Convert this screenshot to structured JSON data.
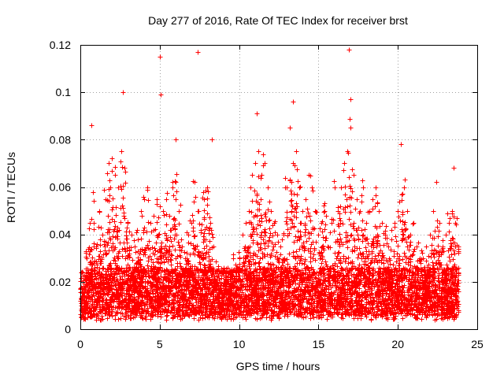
{
  "chart_data": {
    "type": "scatter",
    "title": "Day 277 of 2016, Rate Of TEC Index for receiver brst",
    "xlabel": "GPS time / hours",
    "ylabel": "ROTI / TECUs",
    "xlim": [
      0,
      25
    ],
    "ylim": [
      0,
      0.12
    ],
    "xticks": [
      0,
      5,
      10,
      15,
      20,
      25
    ],
    "xtick_labels": [
      "0",
      "5",
      "10",
      "15",
      "20",
      "25"
    ],
    "yticks": [
      0,
      0.02,
      0.04,
      0.06,
      0.08,
      0.1,
      0.12
    ],
    "ytick_labels": [
      "0",
      "0.02",
      "0.04",
      "0.06",
      "0.08",
      "0.1",
      "0.12"
    ],
    "grid": true,
    "marker": "+",
    "series": [
      {
        "name": "ROTI",
        "color": "#ff0000",
        "x": [
          0.0,
          0.2,
          0.4,
          0.6,
          0.8,
          1.0,
          1.2,
          1.4,
          1.6,
          1.8,
          2.0,
          2.2,
          2.4,
          2.6,
          2.8,
          3.0,
          3.2,
          3.4,
          3.6,
          3.8,
          4.0,
          4.2,
          4.4,
          4.6,
          4.8,
          5.0,
          5.2,
          5.4,
          5.6,
          5.8,
          6.0,
          6.2,
          6.4,
          6.6,
          6.8,
          7.0,
          7.2,
          7.4,
          7.6,
          7.8,
          8.0,
          8.2,
          8.4,
          8.6,
          8.8,
          9.0,
          9.2,
          9.4,
          9.6,
          9.8,
          10.0,
          10.2,
          10.4,
          10.6,
          10.8,
          11.0,
          11.2,
          11.4,
          11.6,
          11.8,
          12.0,
          12.2,
          12.4,
          12.6,
          12.8,
          13.0,
          13.2,
          13.4,
          13.6,
          13.8,
          14.0,
          14.2,
          14.4,
          14.6,
          14.8,
          15.0,
          15.2,
          15.4,
          15.6,
          15.8,
          16.0,
          16.2,
          16.4,
          16.6,
          16.8,
          17.0,
          17.2,
          17.4,
          17.6,
          17.8,
          18.0,
          18.2,
          18.4,
          18.6,
          18.8,
          19.0,
          19.2,
          19.4,
          19.6,
          19.8,
          20.0,
          20.2,
          20.4,
          20.6,
          20.8,
          21.0,
          21.2,
          21.4,
          21.6,
          21.8,
          22.0,
          22.2,
          22.4,
          22.6,
          22.8,
          23.0,
          23.2,
          23.4,
          23.6,
          23.8,
          0.7,
          2.7,
          5.0,
          5.05,
          7.4,
          11.1,
          13.4,
          16.9,
          17.0,
          20.2,
          6.0,
          8.3,
          23.5
        ],
        "y": [
          0.012,
          0.02,
          0.03,
          0.045,
          0.058,
          0.035,
          0.05,
          0.04,
          0.055,
          0.07,
          0.072,
          0.065,
          0.06,
          0.075,
          0.068,
          0.045,
          0.04,
          0.035,
          0.038,
          0.05,
          0.055,
          0.06,
          0.045,
          0.048,
          0.055,
          0.052,
          0.05,
          0.055,
          0.048,
          0.06,
          0.062,
          0.05,
          0.035,
          0.03,
          0.04,
          0.045,
          0.062,
          0.05,
          0.042,
          0.055,
          0.06,
          0.045,
          0.035,
          0.025,
          0.02,
          0.024,
          0.018,
          0.022,
          0.03,
          0.025,
          0.03,
          0.04,
          0.045,
          0.05,
          0.065,
          0.07,
          0.075,
          0.065,
          0.07,
          0.06,
          0.05,
          0.045,
          0.04,
          0.035,
          0.04,
          0.06,
          0.085,
          0.07,
          0.075,
          0.06,
          0.05,
          0.055,
          0.065,
          0.06,
          0.05,
          0.04,
          0.045,
          0.05,
          0.035,
          0.045,
          0.06,
          0.05,
          0.06,
          0.07,
          0.075,
          0.085,
          0.065,
          0.055,
          0.05,
          0.06,
          0.045,
          0.05,
          0.055,
          0.06,
          0.05,
          0.045,
          0.04,
          0.035,
          0.038,
          0.045,
          0.05,
          0.078,
          0.06,
          0.05,
          0.04,
          0.045,
          0.035,
          0.03,
          0.03,
          0.035,
          0.04,
          0.05,
          0.062,
          0.045,
          0.035,
          0.04,
          0.045,
          0.05,
          0.045,
          0.035,
          0.086,
          0.1,
          0.115,
          0.099,
          0.117,
          0.091,
          0.096,
          0.118,
          0.097,
          0.078,
          0.08,
          0.08,
          0.068
        ]
      }
    ]
  }
}
